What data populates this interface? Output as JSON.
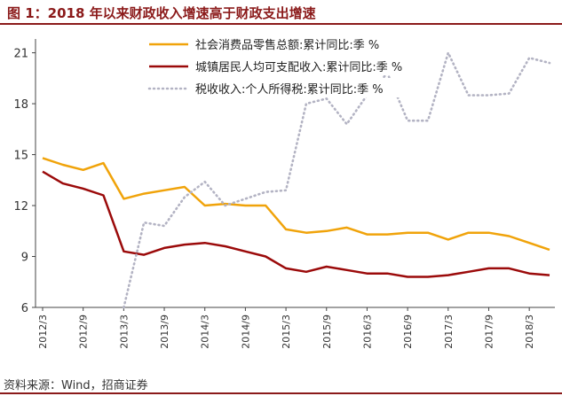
{
  "title": "图 1：2018 年以来财政收入增速高于财政支出增速",
  "source": "资料来源：Wind，招商证券",
  "chart_data": {
    "type": "line",
    "x": [
      "2012/3",
      "2012/6",
      "2012/9",
      "2012/12",
      "2013/3",
      "2013/6",
      "2013/9",
      "2013/12",
      "2014/3",
      "2014/6",
      "2014/9",
      "2014/12",
      "2015/3",
      "2015/6",
      "2015/9",
      "2015/12",
      "2016/3",
      "2016/6",
      "2016/9",
      "2016/12",
      "2017/3",
      "2017/6",
      "2017/9",
      "2017/12",
      "2018/3",
      "2018/6"
    ],
    "xticks": [
      "2012/3",
      "2012/9",
      "2013/3",
      "2013/9",
      "2014/3",
      "2014/9",
      "2015/3",
      "2015/9",
      "2016/3",
      "2016/9",
      "2017/3",
      "2017/9",
      "2018/3"
    ],
    "yticks": [
      6,
      9,
      12,
      15,
      18,
      21
    ],
    "ylim": [
      6,
      21.5
    ],
    "grid": false,
    "legend_position": "top",
    "series": [
      {
        "name": "社会消费品零售总额:累计同比:季 %",
        "color": "#f0a30a",
        "style": "solid",
        "values": [
          14.8,
          14.4,
          14.1,
          14.5,
          12.4,
          12.7,
          12.9,
          13.1,
          12.0,
          12.1,
          12.0,
          12.0,
          10.6,
          10.4,
          10.5,
          10.7,
          10.3,
          10.3,
          10.4,
          10.4,
          10.0,
          10.4,
          10.4,
          10.2,
          9.8,
          9.4
        ]
      },
      {
        "name": "城镇居民人均可支配收入:累计同比:季 %",
        "color": "#9b0a0a",
        "style": "solid",
        "values": [
          14.0,
          13.3,
          13.0,
          12.6,
          9.3,
          9.1,
          9.5,
          9.7,
          9.8,
          9.6,
          9.3,
          9.0,
          8.3,
          8.1,
          8.4,
          8.2,
          8.0,
          8.0,
          7.8,
          7.8,
          7.9,
          8.1,
          8.3,
          8.3,
          8.0,
          7.9
        ]
      },
      {
        "name": "税收收入:个人所得税:累计同比:季 %",
        "color": "#b3b3c3",
        "style": "dotted",
        "values": [
          null,
          null,
          null,
          null,
          6.0,
          11.0,
          10.8,
          12.5,
          13.4,
          12.0,
          12.4,
          12.8,
          12.9,
          18.0,
          18.3,
          16.8,
          18.5,
          19.8,
          17.0,
          17.0,
          21.0,
          18.5,
          18.5,
          18.6,
          20.7,
          20.4
        ]
      }
    ]
  }
}
